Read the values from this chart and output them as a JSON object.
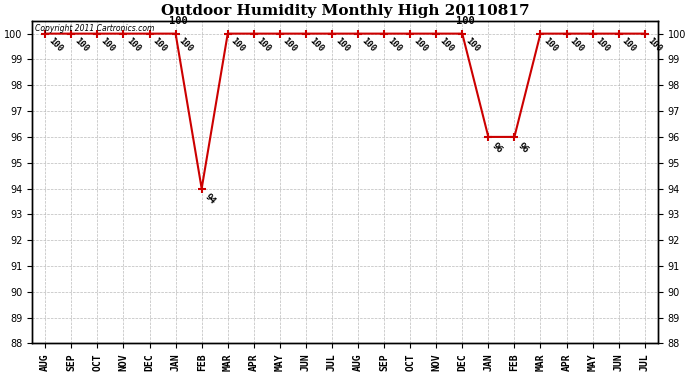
{
  "title": "Outdoor Humidity Monthly High 20110817",
  "copyright_text": "Copyright 2011 Cartronics.com",
  "x_labels": [
    "AUG",
    "SEP",
    "OCT",
    "NOV",
    "DEC",
    "JAN",
    "FEB",
    "MAR",
    "APR",
    "MAY",
    "JUN",
    "JUL",
    "AUG",
    "SEP",
    "OCT",
    "NOV",
    "DEC",
    "JAN",
    "FEB",
    "MAR",
    "APR",
    "MAY",
    "JUN",
    "JUL"
  ],
  "y_values": [
    100,
    100,
    100,
    100,
    100,
    100,
    94,
    100,
    100,
    100,
    100,
    100,
    100,
    100,
    100,
    100,
    100,
    96,
    96,
    100,
    100,
    100,
    100,
    100
  ],
  "ylim": [
    88,
    100.5
  ],
  "yticks": [
    88,
    89,
    90,
    91,
    92,
    93,
    94,
    95,
    96,
    97,
    98,
    99,
    100
  ],
  "line_color": "#cc0000",
  "marker": "+",
  "marker_color": "#cc0000",
  "marker_size": 6,
  "background_color": "#ffffff",
  "grid_color": "#aaaaaa",
  "title_fontsize": 11,
  "tick_fontsize": 7,
  "label_fontsize": 7,
  "label_rotation": -45
}
